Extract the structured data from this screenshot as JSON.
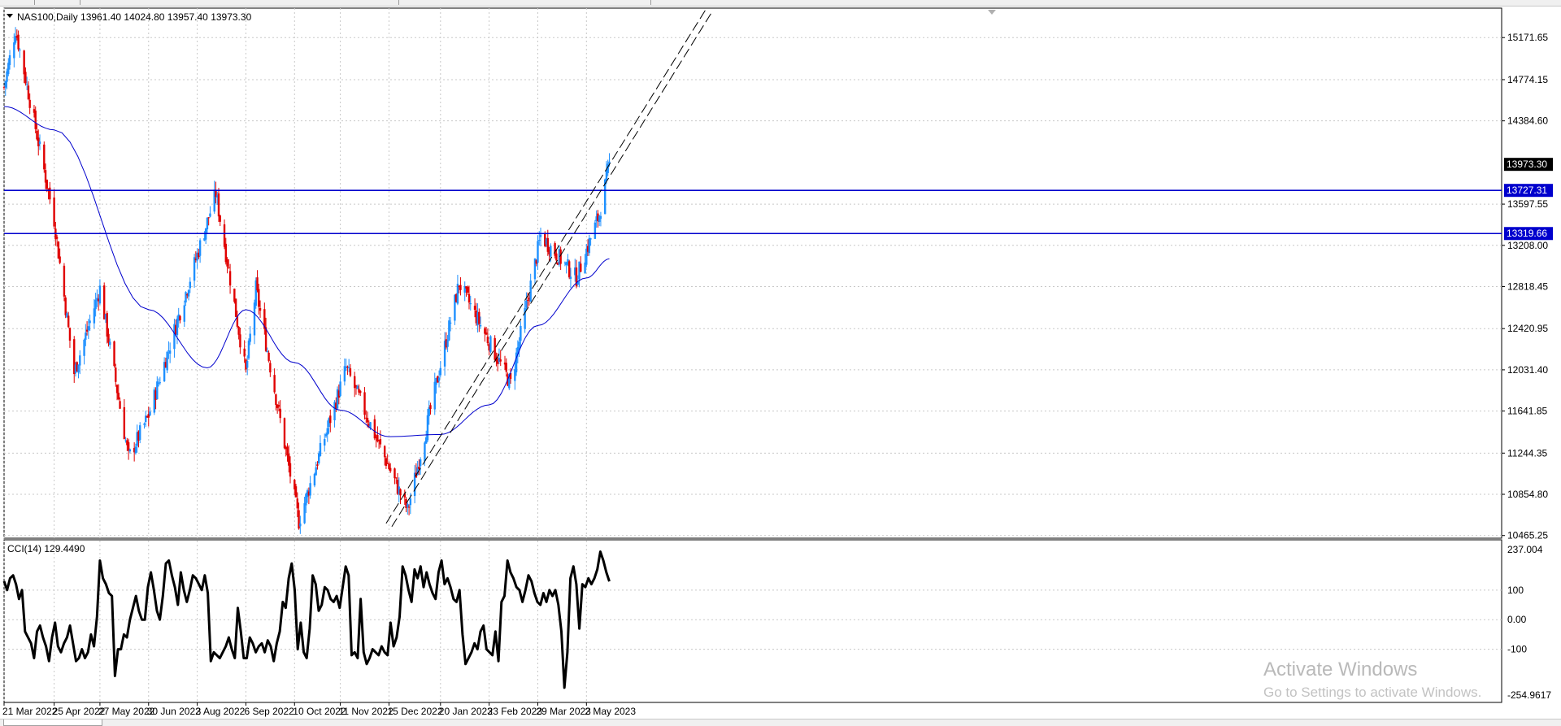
{
  "main_chart": {
    "header": "NAS100,Daily  13961.40 14024.80 13957.40 13973.30",
    "ohlc": {
      "open": 13961.4,
      "high": 14024.8,
      "low": 13957.4,
      "close": 13973.3
    },
    "price_ticks": [
      "15171.65",
      "14774.15",
      "14384.60",
      "13597.55",
      "13208.00",
      "12818.45",
      "12420.95",
      "12031.40",
      "11641.85",
      "11244.35",
      "10854.80",
      "10465.25"
    ],
    "price_tick_values": [
      15171.65,
      14774.15,
      14384.6,
      13597.55,
      13208.0,
      12818.45,
      12420.95,
      12031.4,
      11641.85,
      11244.35,
      10854.8,
      10465.25
    ],
    "current_price_label": "13973.30",
    "horizontal_levels": [
      {
        "label": "13727.31",
        "value": 13727.31
      },
      {
        "label": "13319.66",
        "value": 13319.66
      }
    ],
    "date_ticks": [
      "21 Mar 2022",
      "25 Apr 2022",
      "27 May 2022",
      "30 Jun 2022",
      "3 Aug 2022",
      "6 Sep 2022",
      "10 Oct 2022",
      "11 Nov 2022",
      "15 Dec 2022",
      "20 Jan 2023",
      "23 Feb 2023",
      "29 Mar 2023",
      "2 May 2023"
    ],
    "visible_range": {
      "min": 10440,
      "max": 15450
    }
  },
  "indicator": {
    "header": "CCI(14) 129.4490",
    "ticks": [
      "237.004",
      "100",
      "0.00",
      "-100",
      "-254.9617"
    ],
    "tick_values": [
      237.004,
      100,
      0,
      -100,
      -254.9617
    ],
    "range": {
      "min": -254.9617,
      "max": 237.004
    }
  },
  "chart_data": [
    {
      "type": "candlestick",
      "title": "NAS100,Daily",
      "x_start": "21 Mar 2022",
      "x_end": "18 May 2023",
      "ylim": [
        10440,
        15450
      ],
      "grid": true,
      "series": [
        {
          "name": "price",
          "key_points": [
            [
              "21 Mar 2022",
              14700
            ],
            [
              "29 Mar 2022",
              15250
            ],
            [
              "25 Apr 2022",
              13450
            ],
            [
              "9 May 2022",
              12000
            ],
            [
              "27 May 2022",
              12800
            ],
            [
              "16 Jun 2022",
              11200
            ],
            [
              "30 Jun 2022",
              11600
            ],
            [
              "16 Aug 2022",
              13700
            ],
            [
              "6 Sep 2022",
              12000
            ],
            [
              "13 Sep 2022",
              12800
            ],
            [
              "13 Oct 2022",
              10600
            ],
            [
              "15 Nov 2022",
              12050
            ],
            [
              "28 Dec 2022",
              10700
            ],
            [
              "2 Feb 2023",
              12850
            ],
            [
              "10 Mar 2023",
              11900
            ],
            [
              "31 Mar 2023",
              13300
            ],
            [
              "25 Apr 2023",
              12900
            ],
            [
              "11 May 2023",
              13500
            ],
            [
              "18 May 2023",
              13973.3
            ]
          ]
        },
        {
          "name": "moving average",
          "key_points": [
            [
              "21 Mar 2022",
              14520
            ],
            [
              "25 Apr 2022",
              14300
            ],
            [
              "30 Jun 2022",
              12600
            ],
            [
              "10 Aug 2022",
              12050
            ],
            [
              "6 Sep 2022",
              12600
            ],
            [
              "10 Oct 2022",
              12100
            ],
            [
              "11 Nov 2022",
              11650
            ],
            [
              "15 Dec 2022",
              11400
            ],
            [
              "20 Jan 2023",
              11420
            ],
            [
              "23 Feb 2023",
              11700
            ],
            [
              "29 Mar 2023",
              12450
            ],
            [
              "2 May 2023",
              12900
            ],
            [
              "18 May 2023",
              13080
            ]
          ]
        }
      ],
      "horizontal_lines": [
        13727.31,
        13319.66
      ],
      "trend_channel": [
        [
          "13 Dec 2022",
          10580
        ],
        [
          "25 Jul 2023",
          15450
        ]
      ]
    },
    {
      "type": "line",
      "title": "CCI(14)",
      "ylim": [
        -254.9617,
        237.004
      ],
      "series": [
        {
          "name": "CCI(14)",
          "values": [
            130,
            100,
            140,
            150,
            120,
            70,
            100,
            -40,
            -60,
            -80,
            -130,
            -40,
            -20,
            -60,
            -90,
            -140,
            -60,
            -10,
            -90,
            -110,
            -80,
            -60,
            -20,
            -80,
            -140,
            -130,
            -100,
            -130,
            -110,
            -50,
            -90,
            10,
            200,
            140,
            120,
            90,
            80,
            -190,
            -100,
            -100,
            -50,
            -60,
            0,
            40,
            80,
            30,
            0,
            0,
            110,
            160,
            100,
            30,
            0,
            80,
            190,
            200,
            150,
            110,
            50,
            160,
            100,
            60,
            100,
            150,
            140,
            120,
            100,
            150,
            90,
            -140,
            -110,
            -120,
            -130,
            -110,
            -90,
            -60,
            -100,
            -130,
            40,
            -40,
            -130,
            -130,
            -60,
            -80,
            -110,
            -90,
            -80,
            -110,
            -70,
            -90,
            -140,
            -80,
            -40,
            60,
            40,
            140,
            190,
            100,
            -100,
            -10,
            -110,
            -130,
            -30,
            150,
            120,
            30,
            50,
            110,
            100,
            70,
            60,
            80,
            40,
            110,
            180,
            150,
            -120,
            -110,
            -130,
            70,
            -110,
            -150,
            -130,
            -100,
            -110,
            -120,
            -90,
            -110,
            -120,
            -10,
            -90,
            -60,
            10,
            180,
            150,
            100,
            60,
            170,
            140,
            180,
            110,
            160,
            120,
            90,
            70,
            160,
            200,
            120,
            140,
            110,
            70,
            60,
            100,
            -50,
            -150,
            -130,
            -110,
            -80,
            -100,
            -40,
            -20,
            -100,
            -110,
            -120,
            -40,
            -140,
            60,
            80,
            200,
            160,
            140,
            110,
            100,
            60,
            100,
            150,
            130,
            90,
            60,
            50,
            90,
            60,
            100,
            80,
            100,
            50,
            -40,
            -230,
            -110,
            140,
            180,
            120,
            -30,
            120,
            110,
            140,
            120,
            140,
            170,
            230,
            200,
            160,
            129.449
          ]
        }
      ]
    }
  ]
}
